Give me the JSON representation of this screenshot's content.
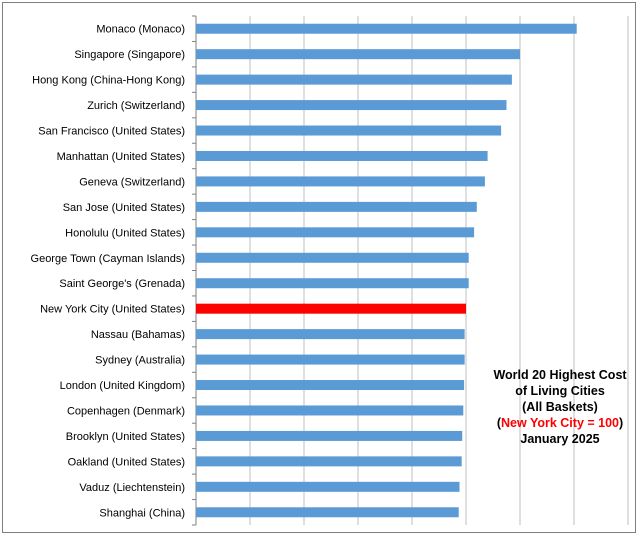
{
  "chart_data": {
    "type": "bar",
    "orientation": "horizontal",
    "categories": [
      "Monaco (Monaco)",
      "Singapore (Singapore)",
      "Hong Kong (China-Hong Kong)",
      "Zurich (Switzerland)",
      "San Francisco (United States)",
      "Manhattan (United States)",
      "Geneva (Switzerland)",
      "San Jose (United States)",
      "Honolulu (United States)",
      "George Town (Cayman Islands)",
      "Saint George's (Grenada)",
      "New York City (United States)",
      "Nassau (Bahamas)",
      "Sydney (Australia)",
      "London (United Kingdom)",
      "Copenhagen (Denmark)",
      "Brooklyn (United States)",
      "Oakland (United States)",
      "Vaduz (Liechtenstein)",
      "Shanghai (China)"
    ],
    "values": [
      141,
      120,
      117,
      115,
      113,
      108,
      107,
      104,
      103,
      101,
      101,
      100,
      99.5,
      99.5,
      99.3,
      99,
      98.6,
      98.4,
      97.6,
      97.3
    ],
    "highlight_category": "New York City (United States)",
    "xlim": [
      0,
      160
    ],
    "grid": true,
    "title": "",
    "xlabel": "",
    "ylabel": ""
  },
  "annotation": {
    "line1": "World 20 Highest Cost",
    "line2": "of Living Cities",
    "line3": "(All Baskets)",
    "line4_open": "(",
    "line4_red": "New York City = 100",
    "line4_close": ")",
    "line5": "January 2025"
  },
  "colors": {
    "bar": "#5b9bd5",
    "highlight": "#ff0000",
    "grid": "#bfbfbf",
    "axis": "#7f7f7f"
  }
}
